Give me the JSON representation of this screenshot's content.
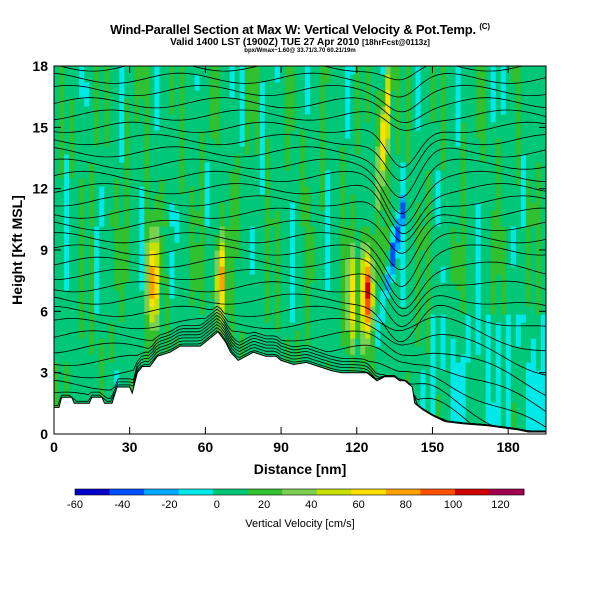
{
  "header": {
    "title": "Wind-Parallel Section at Max W: Vertical Velocity & Pot.Temp.",
    "title_tag": "(C)",
    "subtitle": "Valid 1400 LST (1900Z) TUE 27 Apr 2010",
    "subtitle_tag": "[18hrFcst@0113z]",
    "info": "bpx/Wmax~1.60@ 33.71/3.70 60.21/19m"
  },
  "chart_data": {
    "type": "heatmap",
    "xlabel": "Distance [nm]",
    "ylabel": "Height [Kft MSL]",
    "xlim": [
      0,
      195
    ],
    "ylim": [
      0,
      18
    ],
    "xticks": [
      "0",
      "30",
      "60",
      "90",
      "120",
      "150",
      "180"
    ],
    "yticks": [
      "0",
      "3",
      "6",
      "9",
      "12",
      "15",
      "18"
    ],
    "colorbar": {
      "label": "Vertical Velocity [cm/s]",
      "range": [
        -60,
        130
      ],
      "ticks": [
        "-60",
        "-40",
        "-20",
        "0",
        "20",
        "40",
        "60",
        "80",
        "100",
        "120"
      ],
      "colors": [
        "#0000c8",
        "#0050ff",
        "#00a8ff",
        "#00e8e8",
        "#00c878",
        "#30c030",
        "#7cd050",
        "#c8e000",
        "#ffe000",
        "#ffa000",
        "#ff5000",
        "#d00000",
        "#a00050"
      ]
    },
    "terrain_height_kft": [
      [
        0,
        1.3
      ],
      [
        2,
        1.3
      ],
      [
        3,
        1.8
      ],
      [
        7,
        1.8
      ],
      [
        8,
        1.5
      ],
      [
        14,
        1.5
      ],
      [
        15,
        1.8
      ],
      [
        19,
        1.8
      ],
      [
        20,
        1.5
      ],
      [
        23,
        1.5
      ],
      [
        25,
        2.3
      ],
      [
        30,
        2.3
      ],
      [
        31,
        2.0
      ],
      [
        33,
        3.0
      ],
      [
        35,
        3.3
      ],
      [
        38,
        3.3
      ],
      [
        41,
        3.8
      ],
      [
        46,
        4.0
      ],
      [
        50,
        4.3
      ],
      [
        58,
        4.3
      ],
      [
        63,
        4.8
      ],
      [
        65,
        5.0
      ],
      [
        68,
        4.5
      ],
      [
        70,
        4.0
      ],
      [
        73,
        3.6
      ],
      [
        76,
        3.8
      ],
      [
        79,
        4.0
      ],
      [
        84,
        3.8
      ],
      [
        88,
        3.8
      ],
      [
        90,
        3.6
      ],
      [
        95,
        3.4
      ],
      [
        100,
        3.5
      ],
      [
        105,
        3.3
      ],
      [
        110,
        3.1
      ],
      [
        114,
        3.0
      ],
      [
        124,
        3.0
      ],
      [
        128,
        2.6
      ],
      [
        131,
        2.8
      ],
      [
        135,
        2.8
      ],
      [
        137,
        2.6
      ],
      [
        139,
        2.6
      ],
      [
        142,
        2.3
      ],
      [
        143,
        1.5
      ],
      [
        146,
        1.2
      ],
      [
        150,
        0.9
      ],
      [
        155,
        0.6
      ],
      [
        162,
        0.5
      ],
      [
        172,
        0.4
      ],
      [
        184,
        0.2
      ],
      [
        188,
        0.1
      ],
      [
        195,
        0.1
      ]
    ],
    "vertical_velocity_features": [
      {
        "x": 39,
        "z": 7.5,
        "w": 75
      },
      {
        "x": 66,
        "z": 7.5,
        "w": 70
      },
      {
        "x": 118,
        "z": 6.5,
        "w": 55
      },
      {
        "x": 124,
        "z": 7.0,
        "w": 110
      },
      {
        "x": 131,
        "z": 15.0,
        "w": 80
      },
      {
        "x": 134,
        "z": 8.5,
        "w": -50
      }
    ],
    "isentropes_count": 30
  }
}
